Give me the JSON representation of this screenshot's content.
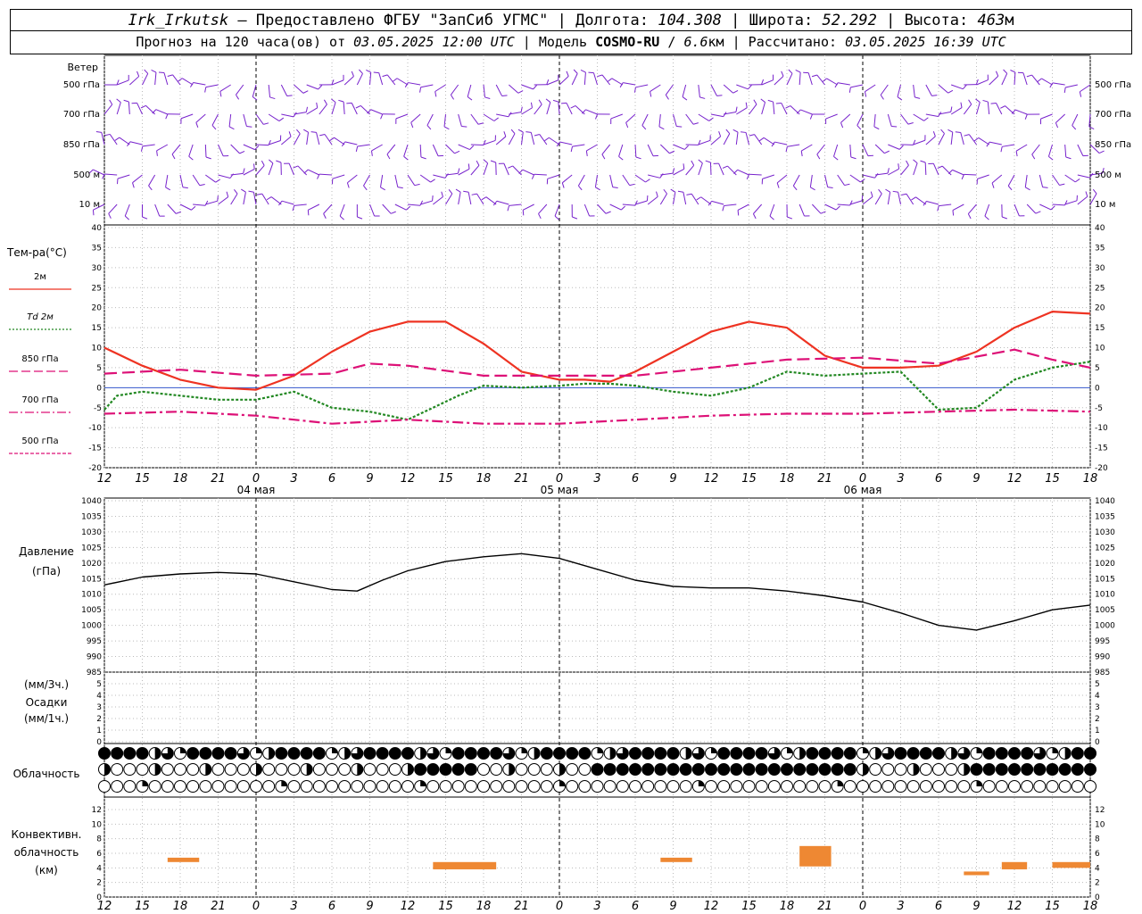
{
  "header": {
    "line1": {
      "station": "Irk_Irkutsk",
      "provider": " — Предоставлено ФГБУ \"ЗапСиб УГМС\" | Долгота: ",
      "lon": "104.308",
      "lat_label": " | Широта: ",
      "lat": "52.292",
      "alt_label": " | Высота: ",
      "alt": "463",
      "alt_unit": "м"
    },
    "line2": {
      "prefix": "Прогноз на 120 часа(ов) от ",
      "start": "03.05.2025 12:00 UTC",
      "model_label": " | Модель ",
      "model": "COSMO-RU",
      "slash": " / ",
      "res": "6.6",
      "res_unit": "км | Рассчитано: ",
      "calc": "03.05.2025 16:39 UTC"
    }
  },
  "panels": {
    "wind": {
      "title": "Ветер",
      "levels": [
        "500 гПа",
        "700 гПа",
        "850 гПа",
        "500 м",
        "10 м"
      ]
    },
    "temp": {
      "title": "Тем-ра(°C)",
      "legend": [
        {
          "label": "2м",
          "color": "#ee3322",
          "style": "solid"
        },
        {
          "label": "Td 2м",
          "color": "#228822",
          "style": "dotted"
        },
        {
          "label": "850 гПа",
          "color": "#dd1177",
          "style": "dashed"
        },
        {
          "label": "700 гПа",
          "color": "#dd1177",
          "style": "dashdot"
        },
        {
          "label": "500 гПа",
          "color": "#dd1177",
          "style": "smalldash"
        }
      ],
      "y_ticks": [
        "-20",
        "-15",
        "-10",
        "-5",
        "0",
        "5",
        "10",
        "15",
        "20",
        "25",
        "30",
        "35",
        "40"
      ]
    },
    "pressure": {
      "title": "Давление",
      "unit": "(гПа)",
      "y_ticks": [
        "985",
        "990",
        "995",
        "1000",
        "1005",
        "1010",
        "1015",
        "1020",
        "1025",
        "1030",
        "1035",
        "1040"
      ]
    },
    "precip": {
      "unit_top": "(мм/3ч.)",
      "title": "Осадки",
      "unit_bottom": "(мм/1ч.)",
      "y_ticks": [
        "0",
        "1",
        "2",
        "3",
        "4",
        "5"
      ]
    },
    "cloud": {
      "title": "Облачность"
    },
    "conv": {
      "title1": "Конвективн.",
      "title2": "облачность",
      "unit": "(км)",
      "y_ticks": [
        "0",
        "2",
        "4",
        "6",
        "8",
        "10",
        "12"
      ]
    }
  },
  "x_axis": {
    "hour_labels": [
      "12",
      "15",
      "18",
      "21",
      "0",
      "3",
      "6",
      "9",
      "12",
      "15",
      "18",
      "21",
      "0",
      "3",
      "6",
      "9",
      "12",
      "15",
      "18",
      "21",
      "0",
      "3",
      "6",
      "9",
      "12",
      "15",
      "18"
    ],
    "date_labels": [
      "04 мая",
      "05 мая",
      "06 мая"
    ]
  },
  "chart_data": {
    "type": "line",
    "x": "hours since 03.05.2025 12:00 UTC",
    "x_range": [
      0,
      78
    ],
    "series": [
      {
        "name": "2м",
        "x": [
          0,
          3,
          6,
          9,
          12,
          15,
          18,
          21,
          24,
          27,
          30,
          33,
          36,
          38,
          40,
          42,
          45,
          48,
          51,
          54,
          57,
          60,
          63,
          66,
          69,
          72,
          75,
          78
        ],
        "y": [
          10,
          5.5,
          2,
          0,
          -0.5,
          3,
          9,
          14,
          16.5,
          16.5,
          11,
          4,
          2,
          2,
          1.5,
          4,
          9,
          14,
          16.5,
          15,
          8,
          5,
          5,
          5.5,
          9,
          15,
          19,
          18.5
        ]
      },
      {
        "name": "Td 2м",
        "x": [
          0,
          1,
          3,
          6,
          9,
          12,
          15,
          18,
          21,
          24,
          26,
          28,
          30,
          33,
          36,
          38,
          40,
          42,
          45,
          48,
          51,
          54,
          57,
          60,
          63,
          66,
          69,
          72,
          75,
          78
        ],
        "y": [
          -5.5,
          -2,
          -1,
          -2,
          -3,
          -3,
          -1,
          -5,
          -6,
          -8,
          -5,
          -2,
          0.5,
          0,
          0.5,
          1,
          1,
          0.5,
          -1,
          -2,
          0,
          4,
          3,
          3.5,
          4,
          -5.5,
          -5,
          2,
          5,
          6.5
        ]
      },
      {
        "name": "850 гПа",
        "x": [
          0,
          6,
          12,
          18,
          21,
          24,
          30,
          36,
          42,
          48,
          54,
          60,
          66,
          72,
          75,
          78
        ],
        "y": [
          3.5,
          4.5,
          3,
          3.5,
          6,
          5.5,
          3,
          3,
          3,
          5,
          7,
          7.5,
          6,
          9.5,
          7,
          5
        ]
      },
      {
        "name": "700 гПа",
        "x": [
          0,
          6,
          12,
          18,
          24,
          30,
          36,
          42,
          48,
          54,
          60,
          66,
          72,
          78
        ],
        "y": [
          -6.5,
          -6,
          -7,
          -9,
          -8,
          -9,
          -9,
          -8,
          -7,
          -6.5,
          -6.5,
          -6,
          -5.5,
          -6
        ]
      },
      {
        "name": "Давление",
        "x": [
          0,
          3,
          6,
          9,
          12,
          15,
          18,
          20,
          22,
          24,
          27,
          30,
          33,
          36,
          39,
          42,
          45,
          48,
          51,
          54,
          57,
          60,
          63,
          66,
          69,
          72,
          75,
          78
        ],
        "y": [
          1013,
          1015.5,
          1016.5,
          1017,
          1016.5,
          1014,
          1011.5,
          1011,
          1014.5,
          1017.5,
          1020.5,
          1022,
          1023,
          1021.5,
          1018,
          1014.5,
          1012.5,
          1012,
          1012,
          1011,
          1009.5,
          1007.5,
          1004,
          1000,
          998.5,
          1001.5,
          1005,
          1006.5
        ]
      }
    ],
    "convective_cloud_km": [
      {
        "x": [
          5,
          7.5
        ],
        "y": [
          4.8,
          5.4
        ]
      },
      {
        "x": [
          26,
          31
        ],
        "y": [
          3.8,
          4.8
        ]
      },
      {
        "x": [
          44,
          46.5
        ],
        "y": [
          4.8,
          5.4
        ]
      },
      {
        "x": [
          55,
          57.5
        ],
        "y": [
          4.2,
          7
        ]
      },
      {
        "x": [
          68,
          70
        ],
        "y": [
          3,
          3.5
        ]
      },
      {
        "x": [
          71,
          73
        ],
        "y": [
          3.8,
          4.8
        ]
      },
      {
        "x": [
          75,
          78
        ],
        "y": [
          4,
          4.8
        ]
      }
    ]
  }
}
